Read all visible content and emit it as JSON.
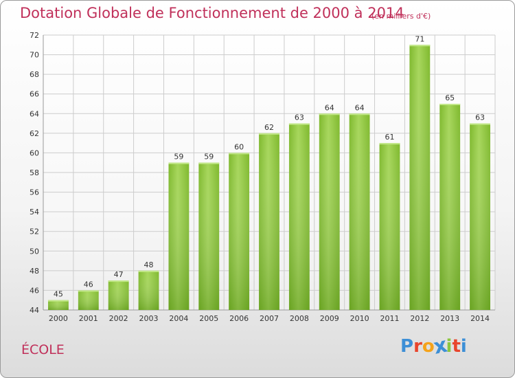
{
  "chart_data": {
    "type": "bar",
    "title": "Dotation Globale de Fonctionnement de 2000 à 2014",
    "subtitle": "(en milliers d'€)",
    "categories": [
      "2000",
      "2001",
      "2002",
      "2003",
      "2004",
      "2005",
      "2006",
      "2007",
      "2008",
      "2009",
      "2010",
      "2011",
      "2012",
      "2013",
      "2014"
    ],
    "values": [
      45,
      46,
      47,
      48,
      59,
      59,
      60,
      62,
      63,
      64,
      64,
      61,
      71,
      65,
      63
    ],
    "ylim": [
      44,
      72
    ],
    "yticks": [
      44,
      46,
      48,
      50,
      52,
      54,
      56,
      58,
      60,
      62,
      64,
      66,
      68,
      70,
      72
    ],
    "grid": true,
    "bar_color": "#8cc63f",
    "bar_color_dark": "#5d9a1a"
  },
  "footer": {
    "commune": "ÉCOLE",
    "logo_letters": [
      "P",
      "r",
      "o",
      "x",
      "i",
      "t",
      "i"
    ],
    "logo_colors": [
      "#3d8fd6",
      "#e8452c",
      "#f5a31a",
      "#3d8fd6",
      "#8cc63f",
      "#e8452c",
      "#3d8fd6"
    ]
  }
}
